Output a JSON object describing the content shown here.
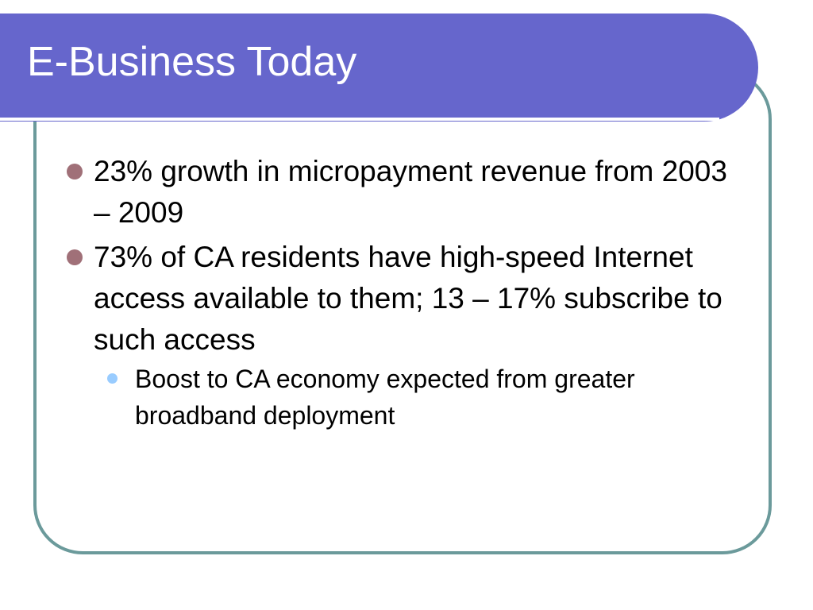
{
  "slide": {
    "title": "E-Business Today",
    "bullets": [
      {
        "text": "23% growth in micropayment revenue from 2003 – 2009",
        "subbullets": []
      },
      {
        "text": "73% of CA residents have high-speed Internet access available to them; 13 – 17% subscribe to such access",
        "subbullets": [
          {
            "text": "Boost to CA economy expected from greater broadband deployment"
          }
        ]
      }
    ]
  },
  "colors": {
    "title_bar": "#6666cc",
    "frame_border": "#6b9a9b",
    "bullet": "#a07078",
    "sub_bullet": "#99ccff"
  }
}
